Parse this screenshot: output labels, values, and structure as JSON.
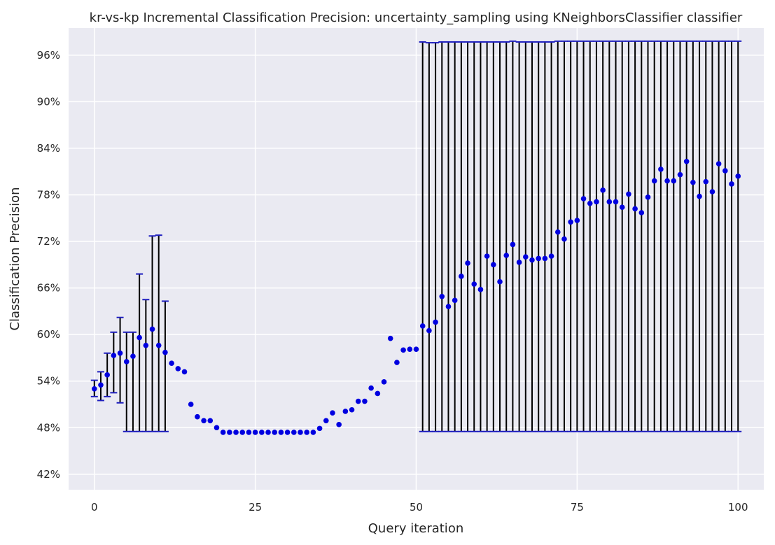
{
  "chart_data": {
    "type": "scatter",
    "title": "kr-vs-kp Incremental Classification Precision: uncertainty_sampling using KNeighborsClassifier classifier",
    "xlabel": "Query iteration",
    "ylabel": "Classification Precision",
    "xlim": [
      -4,
      104
    ],
    "ylim": [
      40,
      99.5
    ],
    "xticks": [
      0,
      25,
      50,
      75,
      100
    ],
    "xtick_labels": [
      "0",
      "25",
      "50",
      "75",
      "100"
    ],
    "yticks": [
      42,
      48,
      54,
      60,
      66,
      72,
      78,
      84,
      90,
      96
    ],
    "ytick_labels": [
      "42%",
      "48%",
      "54%",
      "60%",
      "66%",
      "72%",
      "78%",
      "84%",
      "90%",
      "96%"
    ],
    "grid": true,
    "background": "#eaeaf2",
    "grid_color": "#ffffff",
    "point_color": "#0000e0",
    "errorbar_color": "#000000",
    "cap_color": "#1f1fbf",
    "x": [
      0,
      1,
      2,
      3,
      4,
      5,
      6,
      7,
      8,
      9,
      10,
      11,
      12,
      13,
      14,
      15,
      16,
      17,
      18,
      19,
      20,
      21,
      22,
      23,
      24,
      25,
      26,
      27,
      28,
      29,
      30,
      31,
      32,
      33,
      34,
      35,
      36,
      37,
      38,
      39,
      40,
      41,
      42,
      43,
      44,
      45,
      46,
      47,
      48,
      49,
      50,
      51,
      52,
      53,
      54,
      55,
      56,
      57,
      58,
      59,
      60,
      61,
      62,
      63,
      64,
      65,
      66,
      67,
      68,
      69,
      70,
      71,
      72,
      73,
      74,
      75,
      76,
      77,
      78,
      79,
      80,
      81,
      82,
      83,
      84,
      85,
      86,
      87,
      88,
      89,
      90,
      91,
      92,
      93,
      94,
      95,
      96,
      97,
      98,
      99,
      100
    ],
    "y": [
      53.0,
      53.5,
      54.8,
      57.3,
      57.6,
      56.5,
      57.2,
      59.6,
      58.6,
      60.7,
      58.6,
      57.7,
      56.3,
      55.6,
      55.2,
      51.0,
      49.4,
      48.9,
      48.9,
      48.0,
      47.4,
      47.4,
      47.4,
      47.4,
      47.4,
      47.4,
      47.4,
      47.4,
      47.4,
      47.4,
      47.4,
      47.4,
      47.4,
      47.4,
      47.4,
      47.9,
      48.9,
      49.9,
      48.4,
      50.1,
      50.3,
      51.4,
      51.4,
      53.1,
      52.4,
      53.9,
      59.5,
      56.4,
      58.0,
      58.1,
      58.1,
      61.1,
      60.5,
      61.6,
      64.9,
      63.6,
      64.4,
      67.5,
      69.2,
      66.5,
      65.8,
      70.1,
      69.0,
      66.8,
      70.2,
      71.6,
      69.3,
      70.0,
      69.6,
      69.8,
      69.8,
      70.1,
      73.2,
      72.3,
      74.5,
      74.7,
      77.5,
      76.9,
      77.1,
      78.6,
      77.1,
      77.1,
      76.4,
      78.1,
      76.2,
      75.7,
      77.7,
      79.8,
      81.3,
      79.8,
      79.8,
      80.6,
      82.3,
      79.6,
      77.8,
      79.7,
      78.4,
      82.0,
      81.1,
      79.4,
      80.4
    ],
    "yerr_low": [
      52.0,
      51.5,
      52.0,
      52.5,
      51.2,
      47.5,
      47.5,
      47.5,
      47.5,
      47.5,
      47.5,
      47.5,
      null,
      null,
      null,
      null,
      null,
      null,
      null,
      null,
      null,
      null,
      null,
      null,
      null,
      null,
      null,
      null,
      null,
      null,
      null,
      null,
      null,
      null,
      null,
      null,
      null,
      null,
      null,
      null,
      null,
      null,
      null,
      null,
      null,
      null,
      null,
      null,
      null,
      null,
      null,
      47.5,
      47.5,
      47.5,
      47.5,
      47.5,
      47.5,
      47.5,
      47.5,
      47.5,
      47.5,
      47.5,
      47.5,
      47.5,
      47.5,
      47.5,
      47.5,
      47.5,
      47.5,
      47.5,
      47.5,
      47.5,
      47.5,
      47.5,
      47.5,
      47.5,
      47.5,
      47.5,
      47.5,
      47.5,
      47.5,
      47.5,
      47.5,
      47.5,
      47.5,
      47.5,
      47.5,
      47.5,
      47.5,
      47.5,
      47.5,
      47.5,
      47.5,
      47.5,
      47.5,
      47.5,
      47.5,
      47.5,
      47.5,
      47.5,
      47.5
    ],
    "yerr_high": [
      54.1,
      55.2,
      57.6,
      60.3,
      62.2,
      60.3,
      60.3,
      67.8,
      64.5,
      72.7,
      72.8,
      64.3,
      null,
      null,
      null,
      null,
      null,
      null,
      null,
      null,
      null,
      null,
      null,
      null,
      null,
      null,
      null,
      null,
      null,
      null,
      null,
      null,
      null,
      null,
      null,
      null,
      null,
      null,
      null,
      null,
      null,
      null,
      null,
      null,
      null,
      null,
      null,
      null,
      null,
      null,
      null,
      97.7,
      97.6,
      97.6,
      97.7,
      97.7,
      97.7,
      97.7,
      97.7,
      97.7,
      97.7,
      97.7,
      97.7,
      97.7,
      97.7,
      97.8,
      97.7,
      97.7,
      97.7,
      97.7,
      97.7,
      97.7,
      97.8,
      97.8,
      97.8,
      97.8,
      97.8,
      97.8,
      97.8,
      97.8,
      97.8,
      97.8,
      97.8,
      97.8,
      97.8,
      97.8,
      97.8,
      97.8,
      97.8,
      97.8,
      97.8,
      97.8,
      97.8,
      97.8,
      97.8,
      97.8,
      97.8,
      97.8,
      97.8,
      97.8,
      97.8
    ]
  }
}
